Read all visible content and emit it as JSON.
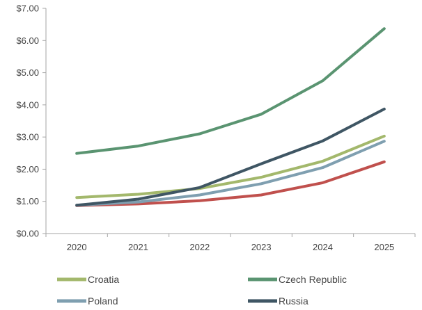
{
  "chart_data": {
    "type": "line",
    "title": "",
    "xlabel": "",
    "ylabel": "",
    "x": [
      "2020",
      "2021",
      "2022",
      "2023",
      "2024",
      "2025"
    ],
    "y_ticks": [
      "$0.00",
      "$1.00",
      "$2.00",
      "$3.00",
      "$4.00",
      "$5.00",
      "$6.00",
      "$7.00"
    ],
    "ylim": [
      0,
      7
    ],
    "grid": false,
    "legend_position": "bottom",
    "series": [
      {
        "name": "Croatia",
        "color": "#a3b86c",
        "values": [
          1.12,
          1.22,
          1.4,
          1.75,
          2.25,
          3.03
        ]
      },
      {
        "name": "Czech Republic",
        "color": "#5a9471",
        "values": [
          2.49,
          2.72,
          3.1,
          3.71,
          4.75,
          6.37
        ]
      },
      {
        "name": "Poland",
        "color": "#7f9fb0",
        "values": [
          0.88,
          0.98,
          1.2,
          1.55,
          2.05,
          2.87
        ]
      },
      {
        "name": "Russia",
        "color": "#3f5664",
        "values": [
          0.88,
          1.07,
          1.43,
          2.17,
          2.88,
          3.87
        ]
      },
      {
        "name": "",
        "color": "#c0504d",
        "values": [
          0.87,
          0.92,
          1.02,
          1.2,
          1.58,
          2.23
        ]
      }
    ]
  }
}
